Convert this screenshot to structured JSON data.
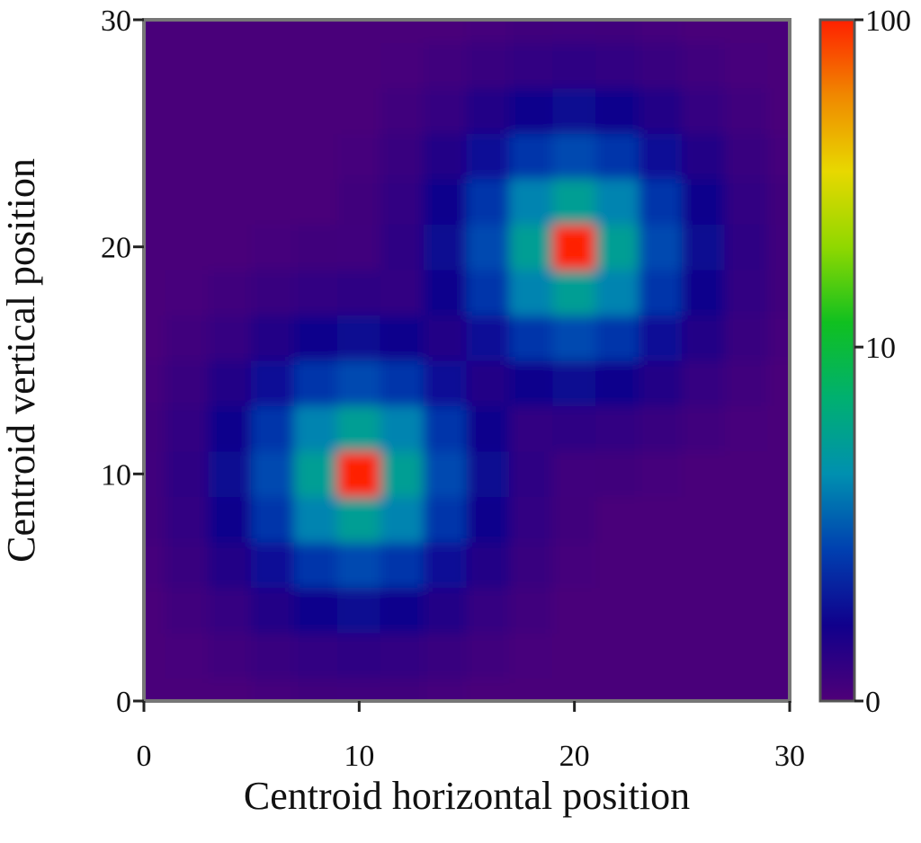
{
  "chart_data": {
    "type": "heatmap",
    "xlabel": "Centroid horizontal position",
    "ylabel": "Centroid vertical position",
    "x": [
      0,
      2,
      4,
      6,
      8,
      10,
      12,
      14,
      16,
      18,
      20,
      22,
      24,
      26,
      28,
      30
    ],
    "y": [
      0,
      2,
      4,
      6,
      8,
      10,
      12,
      14,
      16,
      18,
      20,
      22,
      24,
      26,
      28,
      30
    ],
    "z": [
      [
        0.05,
        0.05,
        0.06,
        0.09,
        0.12,
        0.13,
        0.12,
        0.09,
        0.06,
        0.05,
        0.05,
        0.05,
        0.05,
        0.05,
        0.05,
        0.05
      ],
      [
        0.05,
        0.07,
        0.13,
        0.21,
        0.28,
        0.32,
        0.28,
        0.21,
        0.13,
        0.07,
        0.05,
        0.05,
        0.05,
        0.05,
        0.05,
        0.05
      ],
      [
        0.06,
        0.13,
        0.25,
        0.45,
        0.68,
        0.79,
        0.68,
        0.45,
        0.25,
        0.13,
        0.06,
        0.05,
        0.05,
        0.05,
        0.05,
        0.05
      ],
      [
        0.09,
        0.21,
        0.45,
        0.92,
        1.57,
        1.95,
        1.57,
        0.92,
        0.45,
        0.21,
        0.09,
        0.05,
        0.05,
        0.05,
        0.05,
        0.05
      ],
      [
        0.12,
        0.28,
        0.68,
        1.57,
        3.32,
        4.84,
        3.32,
        1.57,
        0.68,
        0.28,
        0.12,
        0.05,
        0.05,
        0.05,
        0.05,
        0.05
      ],
      [
        0.13,
        0.32,
        0.79,
        1.95,
        4.84,
        100,
        4.84,
        1.95,
        0.79,
        0.32,
        0.13,
        0.12,
        0.09,
        0.06,
        0.05,
        0.05
      ],
      [
        0.12,
        0.28,
        0.68,
        1.57,
        3.32,
        4.84,
        3.32,
        1.57,
        0.68,
        0.28,
        0.32,
        0.28,
        0.21,
        0.13,
        0.07,
        0.05
      ],
      [
        0.09,
        0.21,
        0.45,
        0.92,
        1.57,
        1.95,
        1.57,
        0.92,
        0.45,
        0.68,
        0.79,
        0.68,
        0.45,
        0.25,
        0.13,
        0.06
      ],
      [
        0.06,
        0.13,
        0.25,
        0.45,
        0.68,
        0.79,
        0.68,
        0.45,
        0.92,
        1.57,
        1.95,
        1.57,
        0.92,
        0.45,
        0.21,
        0.09
      ],
      [
        0.05,
        0.07,
        0.13,
        0.21,
        0.28,
        0.32,
        0.28,
        0.68,
        1.57,
        3.32,
        4.84,
        3.32,
        1.57,
        0.68,
        0.28,
        0.12
      ],
      [
        0.05,
        0.05,
        0.06,
        0.09,
        0.12,
        0.13,
        0.32,
        0.79,
        1.95,
        4.84,
        100,
        4.84,
        1.95,
        0.79,
        0.32,
        0.13
      ],
      [
        0.05,
        0.05,
        0.05,
        0.05,
        0.05,
        0.12,
        0.28,
        0.68,
        1.57,
        3.32,
        4.84,
        3.32,
        1.57,
        0.68,
        0.28,
        0.12
      ],
      [
        0.05,
        0.05,
        0.05,
        0.05,
        0.05,
        0.09,
        0.21,
        0.45,
        0.92,
        1.57,
        1.95,
        1.57,
        0.92,
        0.45,
        0.21,
        0.09
      ],
      [
        0.05,
        0.05,
        0.05,
        0.05,
        0.05,
        0.06,
        0.13,
        0.25,
        0.45,
        0.68,
        0.79,
        0.68,
        0.45,
        0.25,
        0.13,
        0.06
      ],
      [
        0.05,
        0.05,
        0.05,
        0.05,
        0.05,
        0.05,
        0.07,
        0.13,
        0.21,
        0.28,
        0.32,
        0.28,
        0.21,
        0.13,
        0.07,
        0.05
      ],
      [
        0.05,
        0.05,
        0.05,
        0.05,
        0.05,
        0.05,
        0.05,
        0.06,
        0.09,
        0.12,
        0.13,
        0.12,
        0.09,
        0.06,
        0.05,
        0.05
      ]
    ],
    "xlim": [
      0,
      30
    ],
    "ylim": [
      0,
      30
    ],
    "xticks": [
      0,
      10,
      20,
      30
    ],
    "yticks": [
      0,
      10,
      20,
      30
    ],
    "colorbar": {
      "lim": [
        0,
        100
      ],
      "ticks": [
        0,
        10,
        100
      ],
      "scale": "log1p",
      "colormap": [
        "#4f0078",
        "#10008c",
        "#0040b0",
        "#0090b0",
        "#00b070",
        "#10c020",
        "#90d800",
        "#e8d800",
        "#f08800",
        "#ff2000"
      ]
    }
  }
}
